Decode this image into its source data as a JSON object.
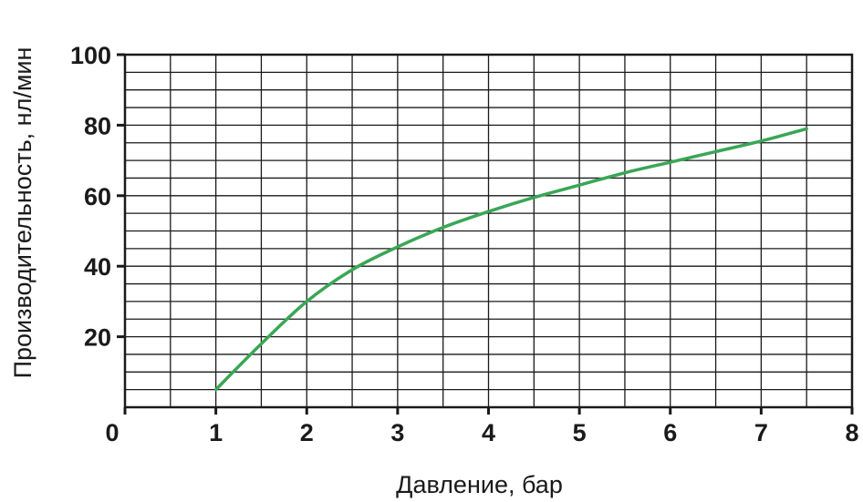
{
  "chart_data": {
    "type": "line",
    "title": "",
    "xlabel": "Давление, бар",
    "ylabel": "Производительность, нл/мин",
    "xlim": [
      0,
      8
    ],
    "ylim": [
      0,
      100
    ],
    "x_ticks": [
      0,
      1,
      2,
      3,
      4,
      5,
      6,
      7,
      8
    ],
    "y_ticks": [
      20,
      40,
      60,
      80,
      100
    ],
    "x_minor_step": 0.5,
    "y_minor_step": 5,
    "grid": true,
    "legend": "none",
    "colors": {
      "series": "#3aa655",
      "grid": "#1a1a1a",
      "text": "#1a1a1a"
    },
    "series": [
      {
        "x": [
          1.0,
          1.5,
          2.0,
          2.5,
          3.0,
          3.5,
          4.0,
          4.5,
          5.0,
          5.5,
          6.0,
          6.5,
          7.0,
          7.5
        ],
        "y": [
          5,
          18,
          30,
          39,
          45.5,
          51,
          55.5,
          59.5,
          63,
          66.5,
          69.5,
          72.5,
          75.5,
          79
        ]
      }
    ]
  }
}
